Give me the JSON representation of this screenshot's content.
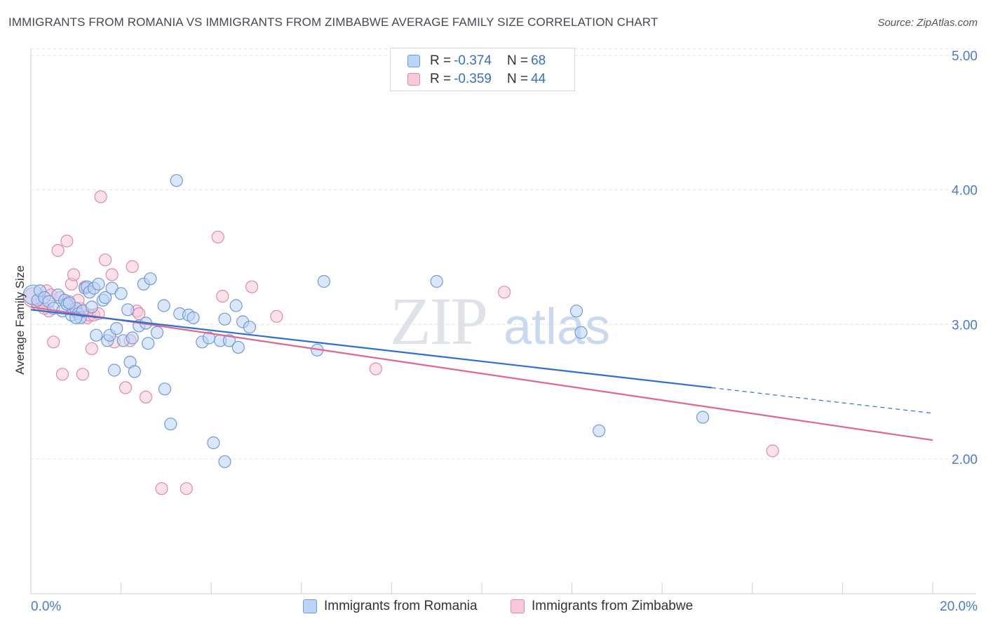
{
  "header": {
    "title": "IMMIGRANTS FROM ROMANIA VS IMMIGRANTS FROM ZIMBABWE AVERAGE FAMILY SIZE CORRELATION CHART",
    "source": "Source: ZipAtlas.com"
  },
  "watermark": {
    "zip": "ZIP",
    "atlas": "atlas"
  },
  "stats": {
    "romania": {
      "r_label": "R =",
      "r_value": "-0.374",
      "n_label": "N =",
      "n_value": "68"
    },
    "zimbabwe": {
      "r_label": "R =",
      "r_value": "-0.359",
      "n_label": "N =",
      "n_value": "44"
    }
  },
  "legend": {
    "romania": "Immigrants from Romania",
    "zimbabwe": "Immigrants from Zimbabwe"
  },
  "colors": {
    "romania_fill": "#bcd4f5",
    "romania_stroke": "#6f9ad8",
    "romania_line": "#2e6fd0",
    "zimbabwe_fill": "#f8c9d8",
    "zimbabwe_stroke": "#e38aa6",
    "zimbabwe_line": "#e0668f",
    "tick_text": "#4a7cc7",
    "grid": "#e3e3e3"
  },
  "chart_data": {
    "type": "scatter",
    "title": "IMMIGRANTS FROM ROMANIA VS IMMIGRANTS FROM ZIMBABWE AVERAGE FAMILY SIZE CORRELATION CHART",
    "xlabel": "",
    "ylabel": "Average Family Size",
    "xlim": [
      0,
      20
    ],
    "ylim": [
      1.0,
      5.15
    ],
    "x_tick_labels": [
      "0.0%",
      "20.0%"
    ],
    "y_ticks": [
      2.0,
      3.0,
      4.0,
      5.0
    ],
    "y_tick_labels": [
      "2.00",
      "3.00",
      "4.00",
      "5.00"
    ],
    "grid": "horizontal dashed",
    "legend_position": "bottom-center",
    "series": [
      {
        "name": "Immigrants from Romania",
        "trend": {
          "x0": 0,
          "y0": 3.11,
          "x1": 15.1,
          "y1": 2.53,
          "dash_to_x": 20,
          "dash_to_y": 2.34
        },
        "points": [
          [
            0.05,
            3.22
          ],
          [
            0.15,
            3.18
          ],
          [
            0.2,
            3.25
          ],
          [
            0.3,
            3.2
          ],
          [
            0.4,
            3.17
          ],
          [
            0.5,
            3.12
          ],
          [
            0.6,
            3.22
          ],
          [
            0.7,
            3.1
          ],
          [
            0.75,
            3.18
          ],
          [
            0.8,
            3.15
          ],
          [
            0.9,
            3.07
          ],
          [
            1.0,
            3.12
          ],
          [
            1.05,
            3.08
          ],
          [
            1.1,
            3.05
          ],
          [
            1.15,
            3.1
          ],
          [
            1.2,
            3.27
          ],
          [
            1.25,
            3.28
          ],
          [
            1.3,
            3.24
          ],
          [
            1.35,
            3.13
          ],
          [
            1.4,
            3.27
          ],
          [
            1.45,
            2.92
          ],
          [
            1.5,
            3.3
          ],
          [
            1.6,
            3.18
          ],
          [
            1.65,
            3.2
          ],
          [
            1.7,
            2.88
          ],
          [
            1.75,
            2.92
          ],
          [
            1.8,
            3.27
          ],
          [
            1.85,
            2.66
          ],
          [
            1.9,
            2.97
          ],
          [
            2.0,
            3.23
          ],
          [
            2.05,
            2.88
          ],
          [
            2.15,
            3.11
          ],
          [
            2.2,
            2.72
          ],
          [
            2.25,
            2.9
          ],
          [
            2.3,
            2.65
          ],
          [
            2.4,
            2.99
          ],
          [
            2.5,
            3.3
          ],
          [
            2.55,
            3.01
          ],
          [
            2.6,
            2.86
          ],
          [
            2.65,
            3.34
          ],
          [
            2.8,
            2.94
          ],
          [
            2.95,
            3.14
          ],
          [
            2.97,
            2.52
          ],
          [
            3.1,
            2.26
          ],
          [
            3.23,
            4.07
          ],
          [
            3.3,
            3.08
          ],
          [
            3.5,
            3.07
          ],
          [
            3.6,
            3.05
          ],
          [
            3.8,
            2.87
          ],
          [
            3.95,
            2.9
          ],
          [
            4.05,
            2.12
          ],
          [
            4.2,
            2.88
          ],
          [
            4.3,
            3.04
          ],
          [
            4.3,
            1.98
          ],
          [
            4.4,
            2.88
          ],
          [
            4.55,
            3.14
          ],
          [
            4.6,
            2.83
          ],
          [
            4.7,
            3.02
          ],
          [
            4.85,
            2.98
          ],
          [
            6.35,
            2.81
          ],
          [
            6.5,
            3.32
          ],
          [
            9.0,
            3.32
          ],
          [
            12.1,
            3.1
          ],
          [
            12.2,
            2.94
          ],
          [
            12.6,
            2.21
          ],
          [
            14.9,
            2.31
          ],
          [
            1.0,
            3.05
          ],
          [
            0.85,
            3.16
          ]
        ]
      },
      {
        "name": "Immigrants from Zimbabwe",
        "trend": {
          "x0": 0,
          "y0": 3.13,
          "x1": 20,
          "y1": 2.14
        },
        "points": [
          [
            0.05,
            3.2
          ],
          [
            0.15,
            3.15
          ],
          [
            0.25,
            3.18
          ],
          [
            0.35,
            3.25
          ],
          [
            0.45,
            3.22
          ],
          [
            0.5,
            2.87
          ],
          [
            0.6,
            3.55
          ],
          [
            0.7,
            2.63
          ],
          [
            0.8,
            3.62
          ],
          [
            0.85,
            3.17
          ],
          [
            0.9,
            3.3
          ],
          [
            0.95,
            3.37
          ],
          [
            1.0,
            3.1
          ],
          [
            1.1,
            3.12
          ],
          [
            1.15,
            2.63
          ],
          [
            1.2,
            3.28
          ],
          [
            1.25,
            3.05
          ],
          [
            1.3,
            3.07
          ],
          [
            1.35,
            2.82
          ],
          [
            1.4,
            3.07
          ],
          [
            1.55,
            3.95
          ],
          [
            1.65,
            3.48
          ],
          [
            1.8,
            3.37
          ],
          [
            1.85,
            2.87
          ],
          [
            2.1,
            2.53
          ],
          [
            2.2,
            2.88
          ],
          [
            2.25,
            3.43
          ],
          [
            2.35,
            3.1
          ],
          [
            2.55,
            2.46
          ],
          [
            2.9,
            1.78
          ],
          [
            3.45,
            1.78
          ],
          [
            4.15,
            3.65
          ],
          [
            4.25,
            3.21
          ],
          [
            4.9,
            3.28
          ],
          [
            5.45,
            3.06
          ],
          [
            7.65,
            2.67
          ],
          [
            10.5,
            3.24
          ],
          [
            16.45,
            2.06
          ],
          [
            0.4,
            3.1
          ],
          [
            1.05,
            3.18
          ],
          [
            0.65,
            3.2
          ],
          [
            1.5,
            3.08
          ],
          [
            0.3,
            3.12
          ],
          [
            2.4,
            3.08
          ]
        ]
      }
    ]
  }
}
